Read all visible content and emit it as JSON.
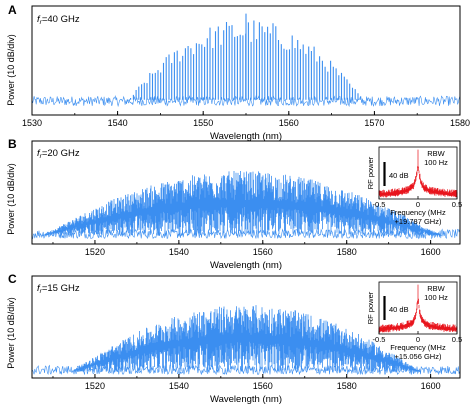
{
  "chart_data": [
    {
      "type": "line",
      "panel_label": "A",
      "rep_rate_label": "=40 GHz",
      "rep_rate_symbol": "f",
      "rep_rate_subscript": "r",
      "xlabel": "Wavelength (nm)",
      "ylabel": "Power (10 dB/div)",
      "xlim": [
        1530,
        1580
      ],
      "xticks": [
        "1530",
        "1540",
        "1550",
        "1560",
        "1570",
        "1580"
      ],
      "grid": false,
      "series_color": "#3b8ef0",
      "comb_spacing_nm": 0.32,
      "envelope_center_nm": 1555,
      "envelope_halfwidth_nm": 14,
      "peak_level_div": 9.3,
      "floor_level_div": 1.1
    },
    {
      "type": "line",
      "panel_label": "B",
      "rep_rate_label": "=20 GHz",
      "rep_rate_symbol": "f",
      "rep_rate_subscript": "r",
      "xlabel": "Wavelength (nm)",
      "ylabel": "Power (10 dB/div)",
      "xlim": [
        1505,
        1607
      ],
      "xticks": [
        "1520",
        "1540",
        "1560",
        "1580",
        "1600"
      ],
      "grid": false,
      "series_color": "#3b8ef0",
      "envelope_center_nm": 1555,
      "envelope_halfwidth_nm": 48,
      "peak_level_div": 7.1,
      "floor_level_div": 0.8,
      "inset": {
        "type": "line",
        "xlabel": "Frequency (MHz",
        "xlabel_line2": "+19.787 GHz)",
        "ylabel": "RF power",
        "xlim": [
          -0.5,
          0.5
        ],
        "xticks": [
          "-0.5",
          "0",
          "0.5"
        ],
        "scale_bar": "40 dB",
        "annotation_line1": "RBW",
        "annotation_line2": "100 Hz",
        "series_color": "#e8141c",
        "center_mhz": 0
      }
    },
    {
      "type": "line",
      "panel_label": "C",
      "rep_rate_label": "=15 GHz",
      "rep_rate_symbol": "f",
      "rep_rate_subscript": "r",
      "xlabel": "Wavelength (nm)",
      "ylabel": "Power (10 dB/div)",
      "xlim": [
        1505,
        1607
      ],
      "xticks": [
        "1520",
        "1540",
        "1560",
        "1580",
        "1600"
      ],
      "grid": false,
      "series_color": "#3b8ef0",
      "envelope_center_nm": 1556,
      "envelope_halfwidth_nm": 42,
      "peak_level_div": 7.2,
      "floor_level_div": 0.6,
      "inset": {
        "type": "line",
        "xlabel": "Frequency (MHz",
        "xlabel_line2": "+15.056 GHz)",
        "ylabel": "RF power",
        "xlim": [
          -0.5,
          0.5
        ],
        "xticks": [
          "-0.5",
          "0",
          "0.5"
        ],
        "scale_bar": "40 dB",
        "annotation_line1": "RBW",
        "annotation_line2": "100 Hz",
        "series_color": "#e8141c",
        "center_mhz": 0
      }
    }
  ]
}
